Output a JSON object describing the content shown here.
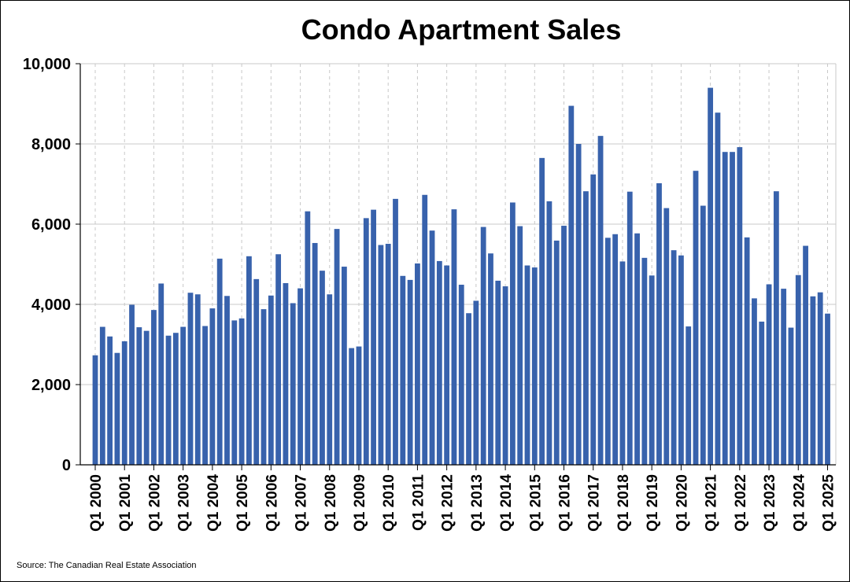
{
  "title": "Condo Apartment Sales",
  "source": "Source: The Canadian Real Estate Association",
  "colors": {
    "bar": "#3862ac",
    "grid": "#c8c8c8",
    "axis": "#000000"
  },
  "chart_data": {
    "type": "bar",
    "title": "Condo Apartment Sales",
    "xlabel": "",
    "ylabel": "",
    "ylim": [
      0,
      10000
    ],
    "y_ticks": [
      0,
      2000,
      4000,
      6000,
      8000,
      10000
    ],
    "y_tick_labels": [
      "0",
      "2,000",
      "4,000",
      "6,000",
      "8,000",
      "10,000"
    ],
    "grid": true,
    "legend": "none",
    "start_year": 2000,
    "x_tick_labels": [
      "Q1 2000",
      "Q1 2001",
      "Q1 2002",
      "Q1 2003",
      "Q1 2004",
      "Q1 2005",
      "Q1 2006",
      "Q1 2007",
      "Q1 2008",
      "Q1 2009",
      "Q1 2010",
      "Q1 2011",
      "Q1 2012",
      "Q1 2013",
      "Q1 2014",
      "Q1 2015",
      "Q1 2016",
      "Q1 2017",
      "Q1 2018",
      "Q1 2019",
      "Q1 2020",
      "Q1 2021",
      "Q1 2022",
      "Q1 2023",
      "Q1 2024",
      "Q1 2025"
    ],
    "values": [
      2730,
      3440,
      3200,
      2790,
      3080,
      3990,
      3430,
      3340,
      3860,
      4520,
      3220,
      3290,
      3440,
      4290,
      4250,
      3460,
      3900,
      5140,
      4210,
      3600,
      3650,
      5200,
      4630,
      3880,
      4220,
      5250,
      4530,
      4030,
      4400,
      6320,
      5530,
      4840,
      4250,
      5880,
      4940,
      2910,
      2950,
      6150,
      6360,
      5480,
      5510,
      6630,
      4710,
      4610,
      5020,
      6730,
      5840,
      5080,
      4970,
      6370,
      4490,
      3780,
      4090,
      5930,
      5270,
      4590,
      4450,
      6540,
      5950,
      4970,
      4920,
      7650,
      6570,
      5590,
      5960,
      8950,
      8000,
      6820,
      7240,
      8200,
      5660,
      5750,
      5070,
      6810,
      5770,
      5160,
      4720,
      7020,
      6400,
      5350,
      5220,
      3450,
      7330,
      6460,
      9400,
      8780,
      7800,
      7800,
      7920,
      5670,
      4150,
      3570,
      4500,
      6820,
      4390,
      3420,
      4730,
      5460,
      4200,
      4300,
      3770
    ]
  }
}
